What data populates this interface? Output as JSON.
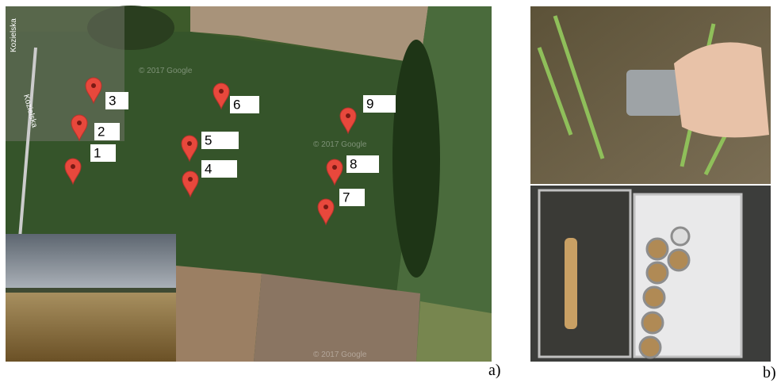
{
  "map": {
    "roads": [
      "Kozielska",
      "Kozielska"
    ],
    "watermarks": [
      "© 2017 Google",
      "© 2017 Google",
      "© 2017 Google"
    ],
    "markers": [
      {
        "label": "1"
      },
      {
        "label": "2"
      },
      {
        "label": "3"
      },
      {
        "label": "4"
      },
      {
        "label": "5"
      },
      {
        "label": "6"
      },
      {
        "label": "7"
      },
      {
        "label": "8"
      },
      {
        "label": "9"
      }
    ]
  },
  "panel_labels": [
    "a)",
    "b)"
  ]
}
